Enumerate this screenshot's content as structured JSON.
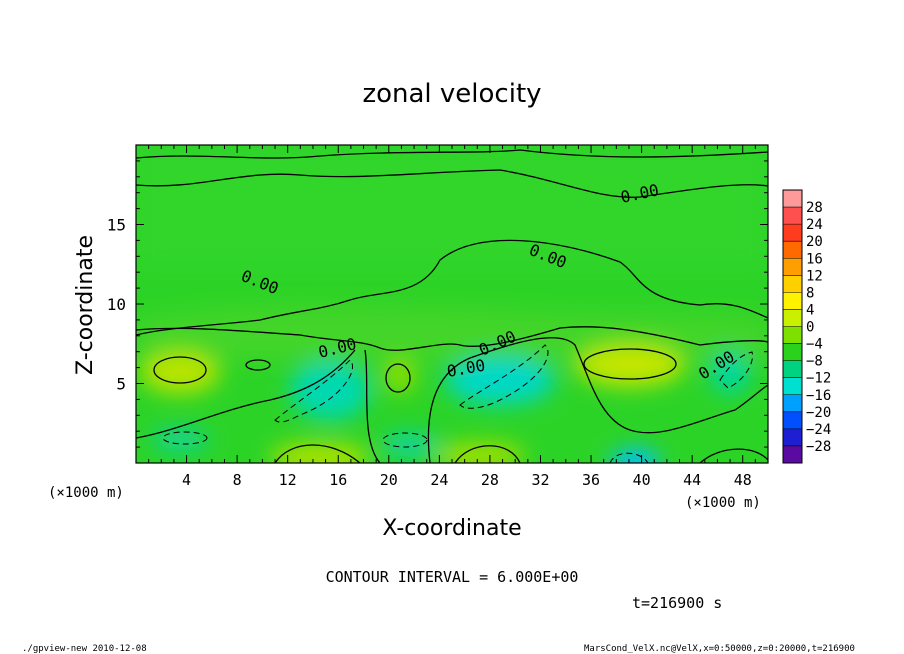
{
  "chart_data": {
    "type": "heatmap",
    "title": "zonal velocity",
    "xlabel": "X-coordinate",
    "ylabel": "Z-coordinate",
    "x_unit": "(×1000 m)",
    "x_unit_right": "(×1000 m)",
    "xlim": [
      0,
      50
    ],
    "ylim": [
      0,
      20
    ],
    "x_ticks": [
      4,
      8,
      12,
      16,
      20,
      24,
      28,
      32,
      36,
      40,
      44,
      48
    ],
    "y_ticks": [
      5,
      10,
      15
    ],
    "contour_interval_text": "CONTOUR INTERVAL = 6.000E+00",
    "contour_label": "0.00",
    "time_text": "t=216900 s",
    "colorbar": {
      "labels": [
        28,
        24,
        20,
        16,
        12,
        8,
        4,
        0,
        -4,
        -8,
        -12,
        -16,
        -20,
        -24,
        -28
      ],
      "colors": [
        "#ff9a9a",
        "#ff5050",
        "#ff3c1e",
        "#ff6a00",
        "#ff9e00",
        "#ffd000",
        "#fff200",
        "#c8f000",
        "#7ee000",
        "#2ad21e",
        "#00d282",
        "#00e0d0",
        "#00a0ff",
        "#0050ff",
        "#1e1ed2",
        "#5a0aa0"
      ]
    },
    "field_features": [
      {
        "kind": "positive max",
        "x": 5,
        "z": 6.0,
        "value": 7
      },
      {
        "kind": "positive max",
        "x": 40,
        "z": 6.2,
        "value": 7
      },
      {
        "kind": "negative min",
        "x": 16,
        "z": 5.0,
        "value": -9
      },
      {
        "kind": "negative min",
        "x": 29,
        "z": 5.2,
        "value": -10
      },
      {
        "kind": "negative min",
        "x": 39.5,
        "z": 0.3,
        "value": -14
      },
      {
        "kind": "negative min",
        "x": 46.5,
        "z": 6.0,
        "value": -8
      },
      {
        "kind": "positive max",
        "x": 15,
        "z": 0.5,
        "value": 7
      },
      {
        "kind": "positive max",
        "x": 27.5,
        "z": 0.6,
        "value": 7
      },
      {
        "kind": "positive max",
        "x": 20.7,
        "z": 5.8,
        "value": 6
      }
    ]
  },
  "footer": {
    "left": "./gpview-new  2010-12-08",
    "right": "MarsCond_VelX.nc@VelX,x=0:50000,z=0:20000,t=216900"
  }
}
